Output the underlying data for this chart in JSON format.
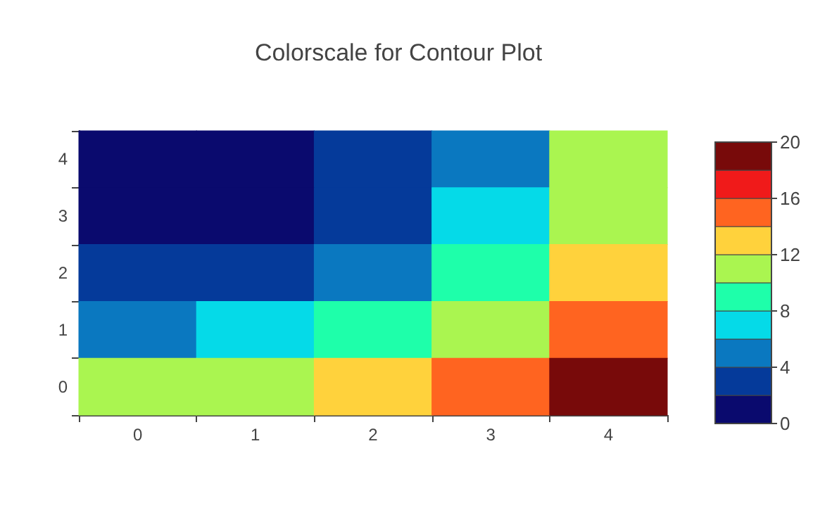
{
  "chart_data": {
    "type": "heatmap",
    "title": "Colorscale for Contour Plot",
    "categories": [
      "0",
      "1",
      "2",
      "3",
      "4"
    ],
    "y_categories": [
      "4",
      "3",
      "2",
      "1",
      "0"
    ],
    "cells": [
      [
        0,
        0.625,
        2.5,
        5.625,
        10
      ],
      [
        0.625,
        1.25,
        3.125,
        6.25,
        10.625
      ],
      [
        2.5,
        3.125,
        5,
        8.125,
        12.5
      ],
      [
        5.625,
        6.25,
        8.125,
        11.25,
        15.625
      ],
      [
        10,
        10.625,
        12.5,
        15.625,
        20
      ]
    ],
    "clim": [
      0,
      20
    ],
    "cticks": [
      0,
      4,
      8,
      12,
      16,
      20
    ],
    "grid": false
  }
}
